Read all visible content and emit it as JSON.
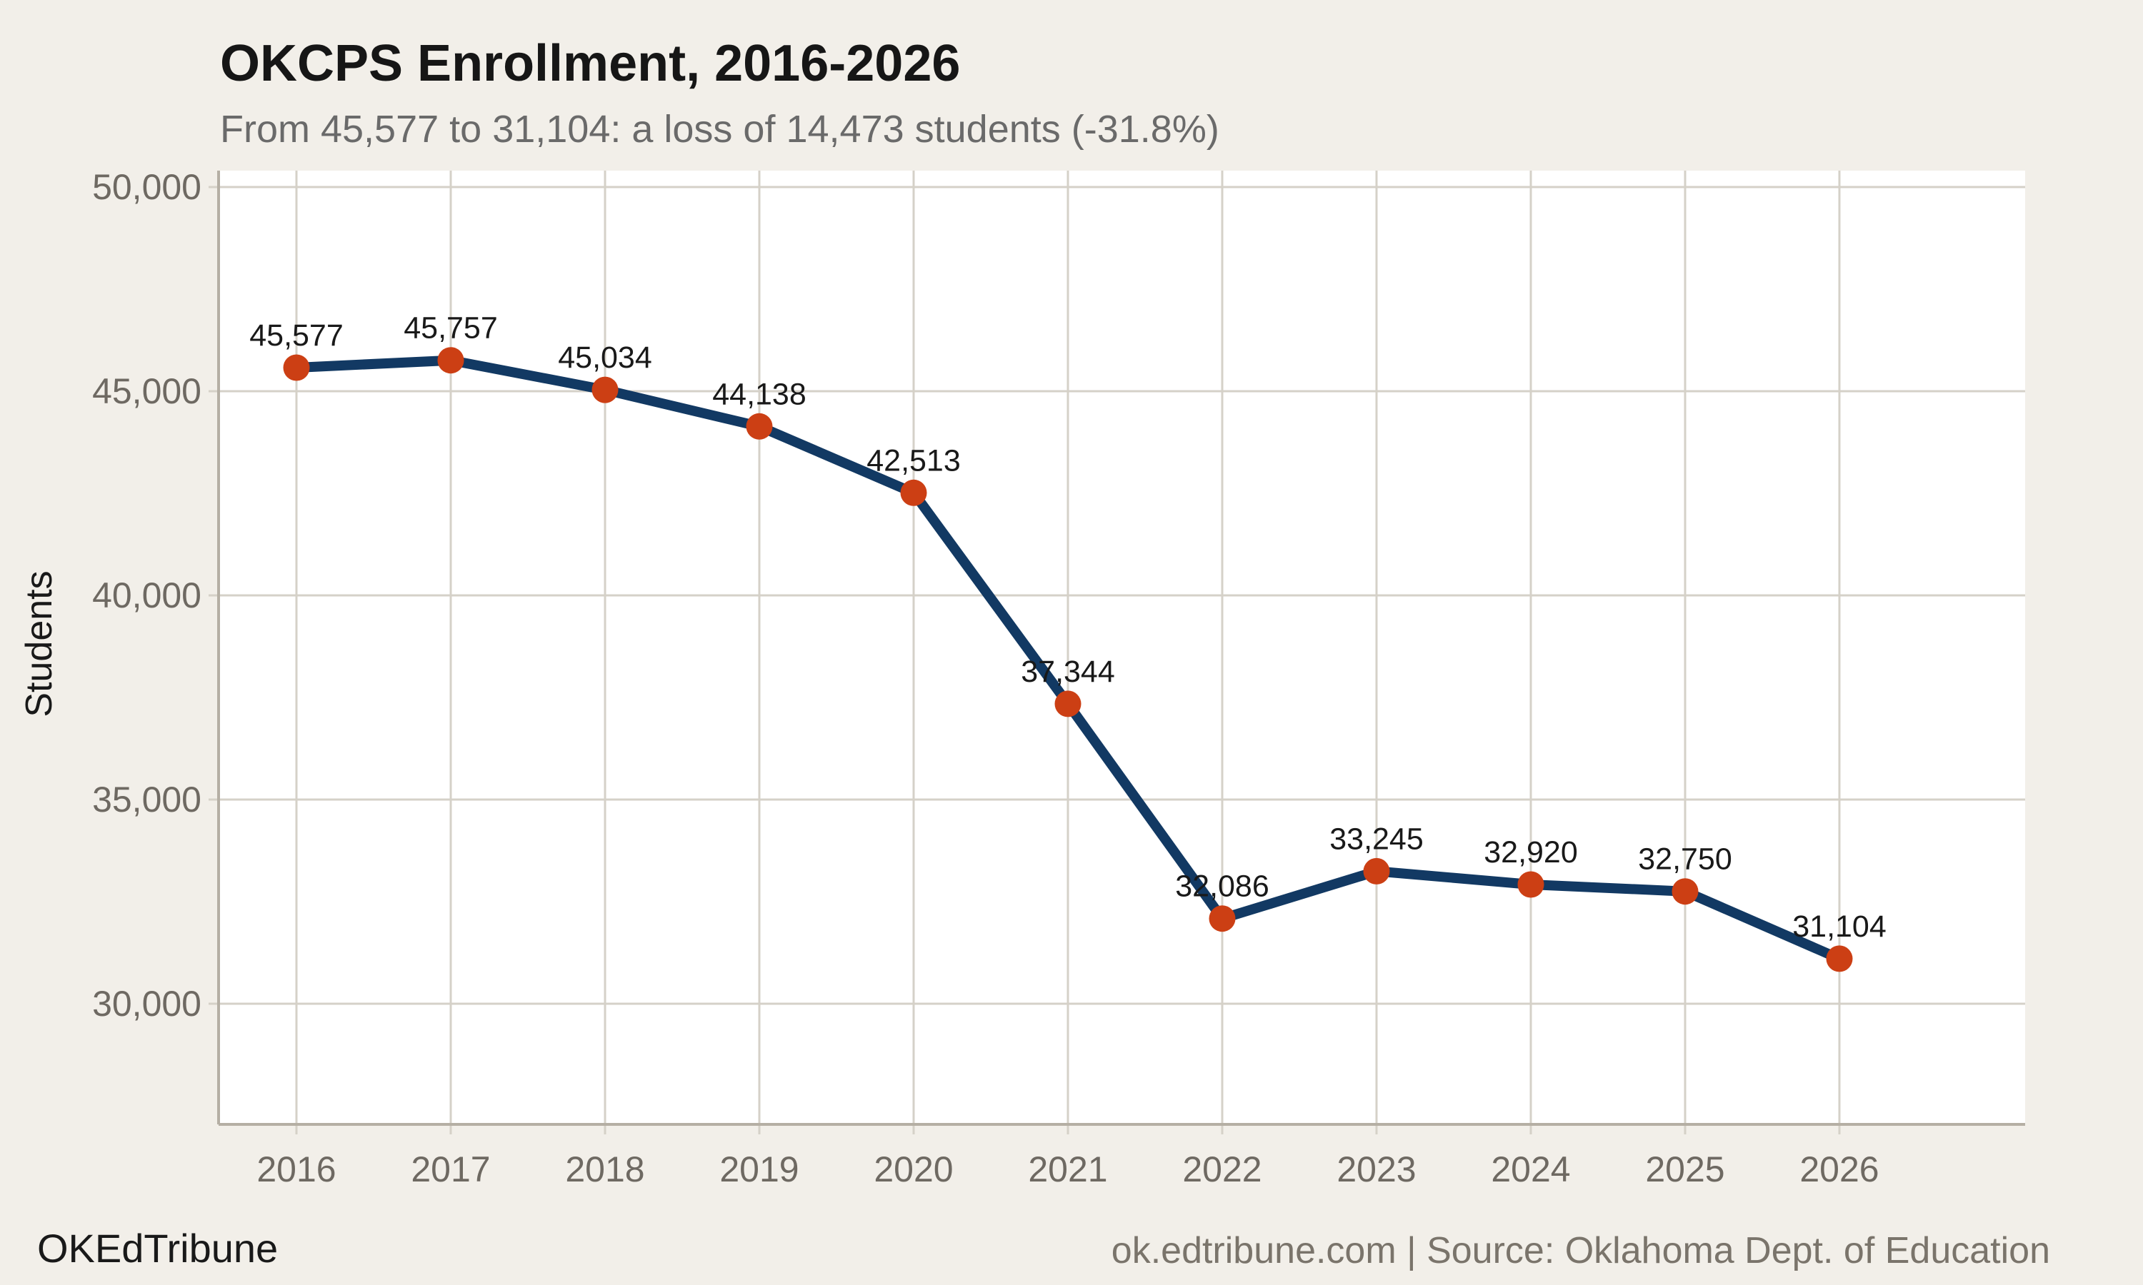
{
  "header": {
    "title": "OKCPS Enrollment, 2016-2026",
    "subtitle": "From 45,577 to 31,104: a loss of 14,473 students (-31.8%)"
  },
  "footer": {
    "brand": "OKEdTribune",
    "source": "ok.edtribune.com | Source: Oklahoma Dept. of Education"
  },
  "chart_data": {
    "type": "line",
    "title": "OKCPS Enrollment, 2016-2026",
    "subtitle": "From 45,577 to 31,104: a loss of 14,473 students (-31.8%)",
    "x": [
      2016,
      2017,
      2018,
      2019,
      2020,
      2021,
      2022,
      2023,
      2024,
      2025,
      2026
    ],
    "values": [
      45577,
      45757,
      45034,
      44138,
      42513,
      37344,
      32086,
      33245,
      32920,
      32750,
      31104
    ],
    "point_labels": [
      "45,577",
      "45,757",
      "45,034",
      "44,138",
      "42,513",
      "37,344",
      "32,086",
      "33,245",
      "32,920",
      "32,750",
      "31,104"
    ],
    "xlabel": "",
    "ylabel": "Students",
    "yticks": [
      50000,
      45000,
      40000,
      35000,
      30000
    ],
    "ytick_labels": [
      "50,000",
      "45,000",
      "40,000",
      "35,000",
      "30,000"
    ],
    "xtick_labels": [
      "2016",
      "2017",
      "2018",
      "2019",
      "2020",
      "2021",
      "2022",
      "2023",
      "2024",
      "2025",
      "2026"
    ],
    "ylim": [
      27050,
      50400
    ],
    "grid": true,
    "legend": "none",
    "colors": {
      "line": "#123963",
      "marker": "#cc3f14",
      "plot_background": "#ffffff",
      "page_background": "#f2efe9",
      "gridline": "#d5d1c8",
      "axis_line": "#b5afa4",
      "tick_label": "#6e6962",
      "data_label": "#191919"
    }
  }
}
